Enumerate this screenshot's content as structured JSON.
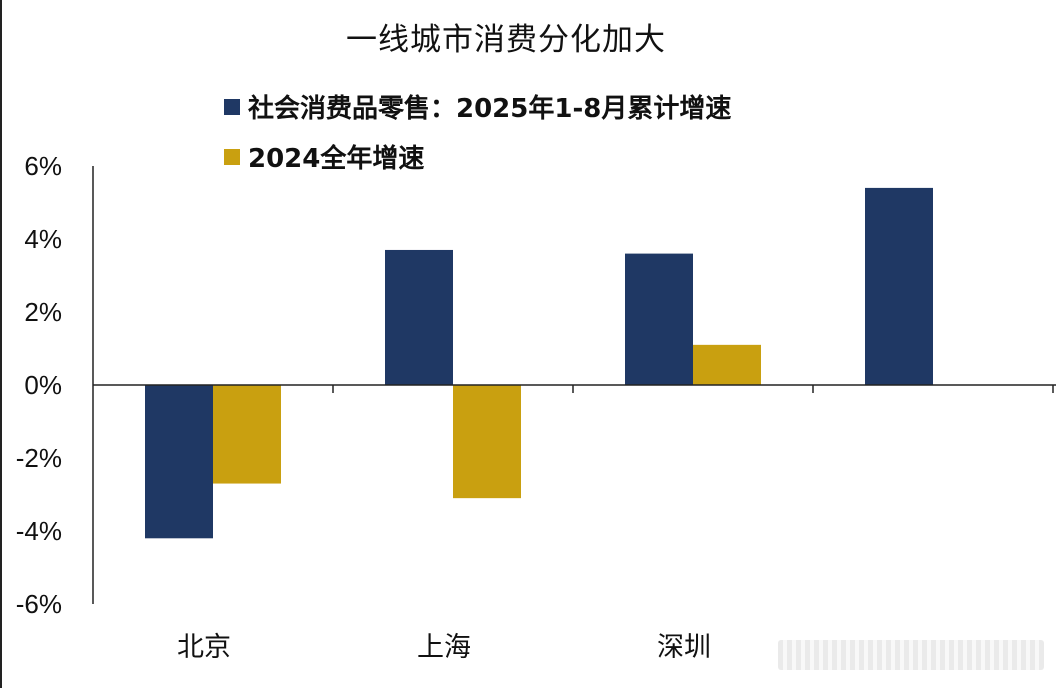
{
  "chart_data": {
    "type": "bar",
    "title": "一线城市消费分化加大",
    "categories": [
      "北京",
      "上海",
      "深圳",
      ""
    ],
    "series": [
      {
        "name": "社会消费品零售：2025年1-8月累计增速",
        "color": "#1f3864",
        "values": [
          -4.2,
          3.7,
          3.6,
          5.4
        ]
      },
      {
        "name": "2024全年增速",
        "color": "#c9a010",
        "values": [
          -2.7,
          -3.1,
          1.1,
          null
        ]
      }
    ],
    "ylim": [
      -6,
      6
    ],
    "yticks": [
      "6%",
      "4%",
      "2%",
      "0%",
      "-2%",
      "-4%",
      "-6%"
    ],
    "ytick_values": [
      6,
      4,
      2,
      0,
      -2,
      -4,
      -6
    ],
    "xlabel": "",
    "ylabel": "",
    "grid": false,
    "legend_position": "top-left"
  }
}
